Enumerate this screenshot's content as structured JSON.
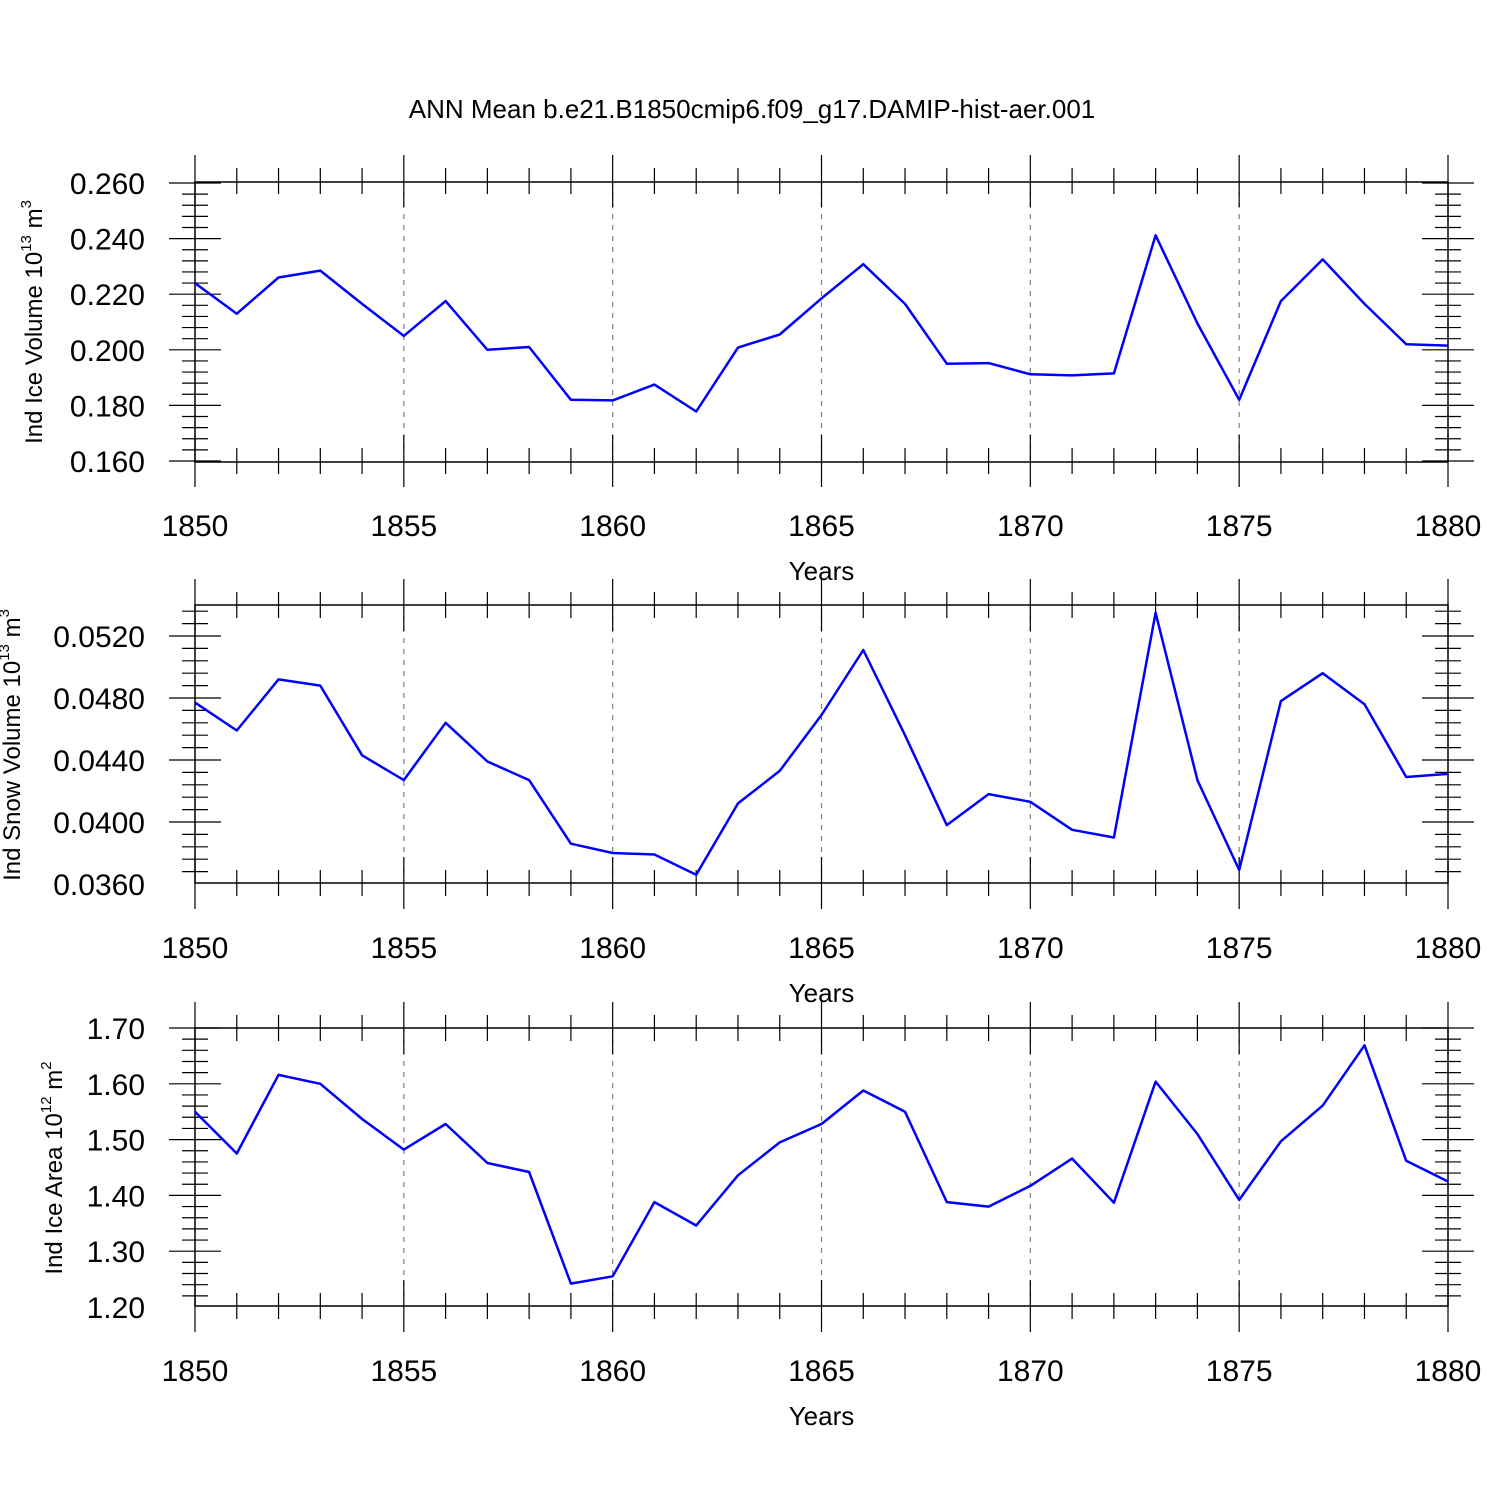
{
  "figure_title": "ANN Mean b.e21.B1850cmip6.f09_g17.DAMIP-hist-aer.001",
  "colors": {
    "series": "#0000ff",
    "axes": "#000000",
    "grid": "#808080"
  },
  "chart_data": [
    {
      "type": "line",
      "ylabel": {
        "prefix": "Ind Ice Volume 10",
        "exp": "13",
        "unit": " m",
        "unit_exp": "3"
      },
      "xlabel": "Years",
      "xlim": [
        1850,
        1880
      ],
      "ylim": [
        0.16,
        0.26
      ],
      "xticks": [
        1850,
        1855,
        1860,
        1865,
        1870,
        1875,
        1880
      ],
      "yticks": [
        "0.160",
        "0.180",
        "0.200",
        "0.220",
        "0.240",
        "0.260"
      ],
      "grid": "dashed vertical at major x ticks",
      "x": [
        1850,
        1851,
        1852,
        1853,
        1854,
        1855,
        1856,
        1857,
        1858,
        1859,
        1860,
        1861,
        1862,
        1863,
        1864,
        1865,
        1866,
        1867,
        1868,
        1869,
        1870,
        1871,
        1872,
        1873,
        1874,
        1875,
        1876,
        1877,
        1878,
        1879,
        1880
      ],
      "series": [
        {
          "values": [
            0.224,
            0.213,
            0.226,
            0.2285,
            0.2165,
            0.205,
            0.2175,
            0.2,
            0.201,
            0.182,
            0.1818,
            0.1875,
            0.1778,
            0.2008,
            0.2055,
            0.2185,
            0.2308,
            0.2165,
            0.195,
            0.1952,
            0.1912,
            0.1908,
            0.1915,
            0.2412,
            0.2095,
            0.182,
            0.2175,
            0.2325,
            0.2165,
            0.202,
            0.2015
          ]
        }
      ]
    },
    {
      "type": "line",
      "ylabel": {
        "prefix": "Ind Snow Volume 10",
        "exp": "13",
        "unit": " m",
        "unit_exp": "3"
      },
      "xlabel": "Years",
      "xlim": [
        1850,
        1880
      ],
      "ylim": [
        0.0352,
        0.054
      ],
      "xticks": [
        1850,
        1855,
        1860,
        1865,
        1870,
        1875,
        1880
      ],
      "yticks": [
        "0.0360",
        "0.0400",
        "0.0440",
        "0.0480",
        "0.0520"
      ],
      "grid": "dashed vertical at major x ticks",
      "x": [
        1850,
        1851,
        1852,
        1853,
        1854,
        1855,
        1856,
        1857,
        1858,
        1859,
        1860,
        1861,
        1862,
        1863,
        1864,
        1865,
        1866,
        1867,
        1868,
        1869,
        1870,
        1871,
        1872,
        1873,
        1874,
        1875,
        1876,
        1877,
        1878,
        1879,
        1880
      ],
      "series": [
        {
          "values": [
            0.0477,
            0.0459,
            0.0492,
            0.0488,
            0.0443,
            0.0427,
            0.0464,
            0.0439,
            0.0427,
            0.0386,
            0.038,
            0.0379,
            0.0366,
            0.0412,
            0.0433,
            0.0469,
            0.0511,
            0.0456,
            0.0398,
            0.0418,
            0.0413,
            0.0395,
            0.039,
            0.0535,
            0.0427,
            0.0369,
            0.0478,
            0.0496,
            0.0476,
            0.0429,
            0.0431
          ]
        }
      ]
    },
    {
      "type": "line",
      "ylabel": {
        "prefix": "Ind Ice Area 10",
        "exp": "12",
        "unit": " m",
        "unit_exp": "2"
      },
      "xlabel": "Years",
      "xlim": [
        1850,
        1880
      ],
      "ylim": [
        1.2,
        1.7
      ],
      "xticks": [
        1850,
        1855,
        1860,
        1865,
        1870,
        1875,
        1880
      ],
      "yticks": [
        "1.20",
        "1.30",
        "1.40",
        "1.50",
        "1.60",
        "1.70"
      ],
      "grid": "dashed vertical at major x ticks",
      "x": [
        1850,
        1851,
        1852,
        1853,
        1854,
        1855,
        1856,
        1857,
        1858,
        1859,
        1860,
        1861,
        1862,
        1863,
        1864,
        1865,
        1866,
        1867,
        1868,
        1869,
        1870,
        1871,
        1872,
        1873,
        1874,
        1875,
        1876,
        1877,
        1878,
        1879,
        1880
      ],
      "series": [
        {
          "values": [
            1.55,
            1.475,
            1.616,
            1.6,
            1.537,
            1.482,
            1.528,
            1.458,
            1.442,
            1.242,
            1.255,
            1.388,
            1.346,
            1.436,
            1.495,
            1.528,
            1.588,
            1.55,
            1.388,
            1.38,
            1.417,
            1.466,
            1.387,
            1.604,
            1.51,
            1.392,
            1.497,
            1.561,
            1.669,
            1.462,
            1.425
          ]
        }
      ]
    }
  ]
}
